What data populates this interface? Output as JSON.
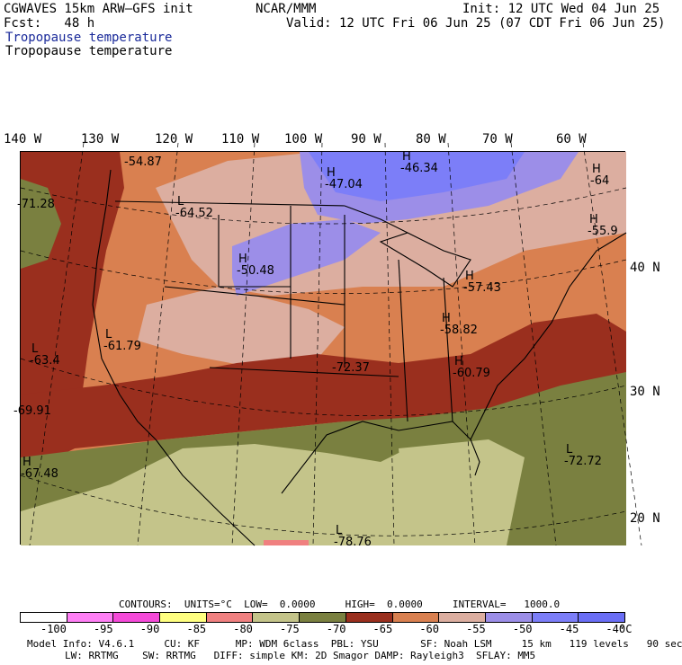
{
  "header": {
    "model_line": "CGWAVES 15km ARW–GFS init",
    "fcst_line": "Fcst:   48 h",
    "org": "NCAR/MMM",
    "init_line": "Init: 12 UTC Wed 04 Jun 25",
    "valid_line": "Valid: 12 UTC Fri 06 Jun 25 (07 CDT Fri 06 Jun 25)",
    "field_blue": "Tropopause temperature",
    "field_black": "Tropopause temperature"
  },
  "map": {
    "lon_labels": [
      "140 W",
      "130 W",
      "120 W",
      "110 W",
      "100 W",
      "90 W",
      "80 W",
      "70 W",
      "60 W"
    ],
    "lat_labels": [
      "40 N",
      "30 N",
      "20 N"
    ],
    "centers": [
      {
        "type": "",
        "value": "-54.87"
      },
      {
        "type": "",
        "value": "-71.28"
      },
      {
        "type": "L",
        "value": "-64.52"
      },
      {
        "type": "H",
        "value": "-47.04"
      },
      {
        "type": "H",
        "value": "-46.34"
      },
      {
        "type": "H",
        "value": "-64"
      },
      {
        "type": "H",
        "value": "-55.9"
      },
      {
        "type": "H",
        "value": "-50.48"
      },
      {
        "type": "H",
        "value": "-57.43"
      },
      {
        "type": "H",
        "value": "-58.82"
      },
      {
        "type": "L",
        "value": "-61.79"
      },
      {
        "type": "L",
        "value": "-63.4"
      },
      {
        "type": "",
        "value": "-72.37"
      },
      {
        "type": "H",
        "value": "-60.79"
      },
      {
        "type": "",
        "value": "-69.91"
      },
      {
        "type": "H",
        "value": "-67.48"
      },
      {
        "type": "L",
        "value": "-72.72"
      },
      {
        "type": "L",
        "value": "-78.76"
      }
    ]
  },
  "contours_line": "CONTOURS:  UNITS=°C  LOW=  0.0000     HIGH=  0.0000     INTERVAL=   1000.0",
  "colorbar": {
    "colors": [
      "#ffffff",
      "#ff7ff5",
      "#f54ad9",
      "#ffff80",
      "#f08080",
      "#c4c48a",
      "#7a8040",
      "#9a2f1e",
      "#d98050",
      "#dcaea0",
      "#9c8ee8",
      "#7c7ef8",
      "#6a6ef5"
    ],
    "ticks": [
      "-100",
      "-95",
      "-90",
      "-85",
      "-80",
      "-75",
      "-70",
      "-65",
      "-60",
      "-55",
      "-50",
      "-45",
      "-40"
    ],
    "unit": "°C"
  },
  "footer": {
    "line1": "Model Info: V4.6.1     CU: KF      MP: WDM 6class  PBL: YSU       SF: Noah LSM     15 km   119 levels   90 sec",
    "line2": "LW: RRTMG    SW: RRTMG   DIFF: simple KM: 2D Smagor DAMP: Rayleigh3  SFLAY: MM5"
  }
}
